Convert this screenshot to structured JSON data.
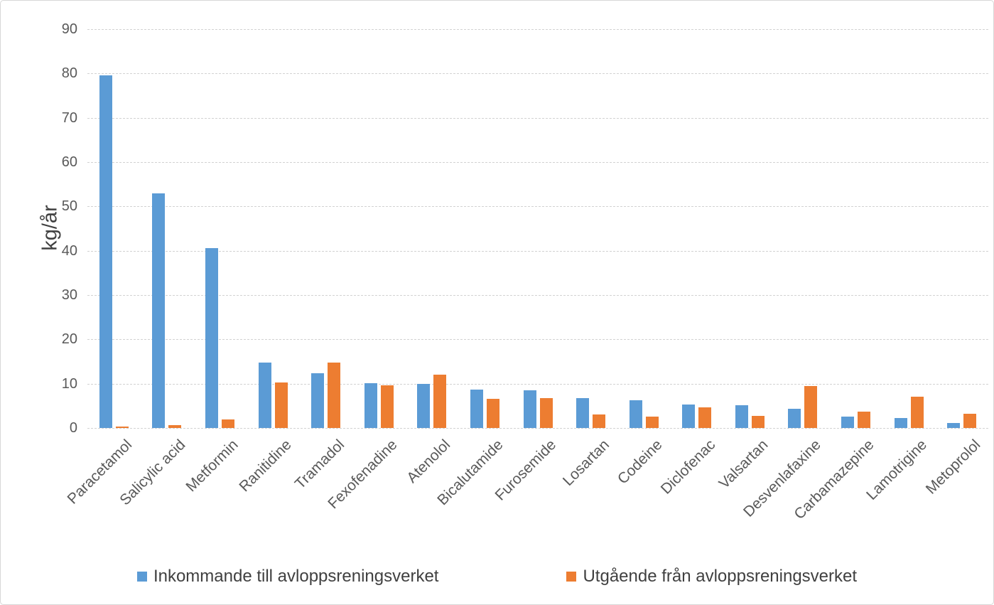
{
  "chart_data": {
    "type": "bar",
    "title": "",
    "xlabel": "",
    "ylabel": "kg/år",
    "ylim": [
      0,
      90
    ],
    "yticks": [
      0,
      10,
      20,
      30,
      40,
      50,
      60,
      70,
      80,
      90
    ],
    "grid": "horizontal-dashed",
    "legend_position": "bottom-center",
    "categories": [
      "Paracetamol",
      "Salicylic acid",
      "Metformin",
      "Ranitidine",
      "Tramadol",
      "Fexofenadine",
      "Atenolol",
      "Bicalutamide",
      "Furosemide",
      "Losartan",
      "Codeine",
      "Diclofenac",
      "Valsartan",
      "Desvenlafaxine",
      "Carbamazepine",
      "Lamotrigine",
      "Metoprolol"
    ],
    "series": [
      {
        "name": "Inkommande till avloppsreningsverket",
        "color": "#5B9BD5",
        "values": [
          79.5,
          52.9,
          40.6,
          14.7,
          12.3,
          10.1,
          10.0,
          8.7,
          8.5,
          6.8,
          6.2,
          5.3,
          5.2,
          4.3,
          2.5,
          2.2,
          1.2
        ]
      },
      {
        "name": "Utgående från avloppsreningsverket",
        "color": "#ED7D31",
        "values": [
          0.3,
          0.6,
          2.0,
          10.3,
          14.7,
          9.6,
          12.1,
          6.5,
          6.8,
          3.0,
          2.5,
          4.6,
          2.7,
          9.4,
          3.7,
          7.0,
          3.2
        ]
      }
    ]
  },
  "colors": {
    "series_blue": "#5B9BD5",
    "series_orange": "#ED7D31",
    "gridline": "#D2D2D2",
    "tick_text": "#595959",
    "legend_text": "#404040",
    "chart_border": "#D7D7D7"
  }
}
